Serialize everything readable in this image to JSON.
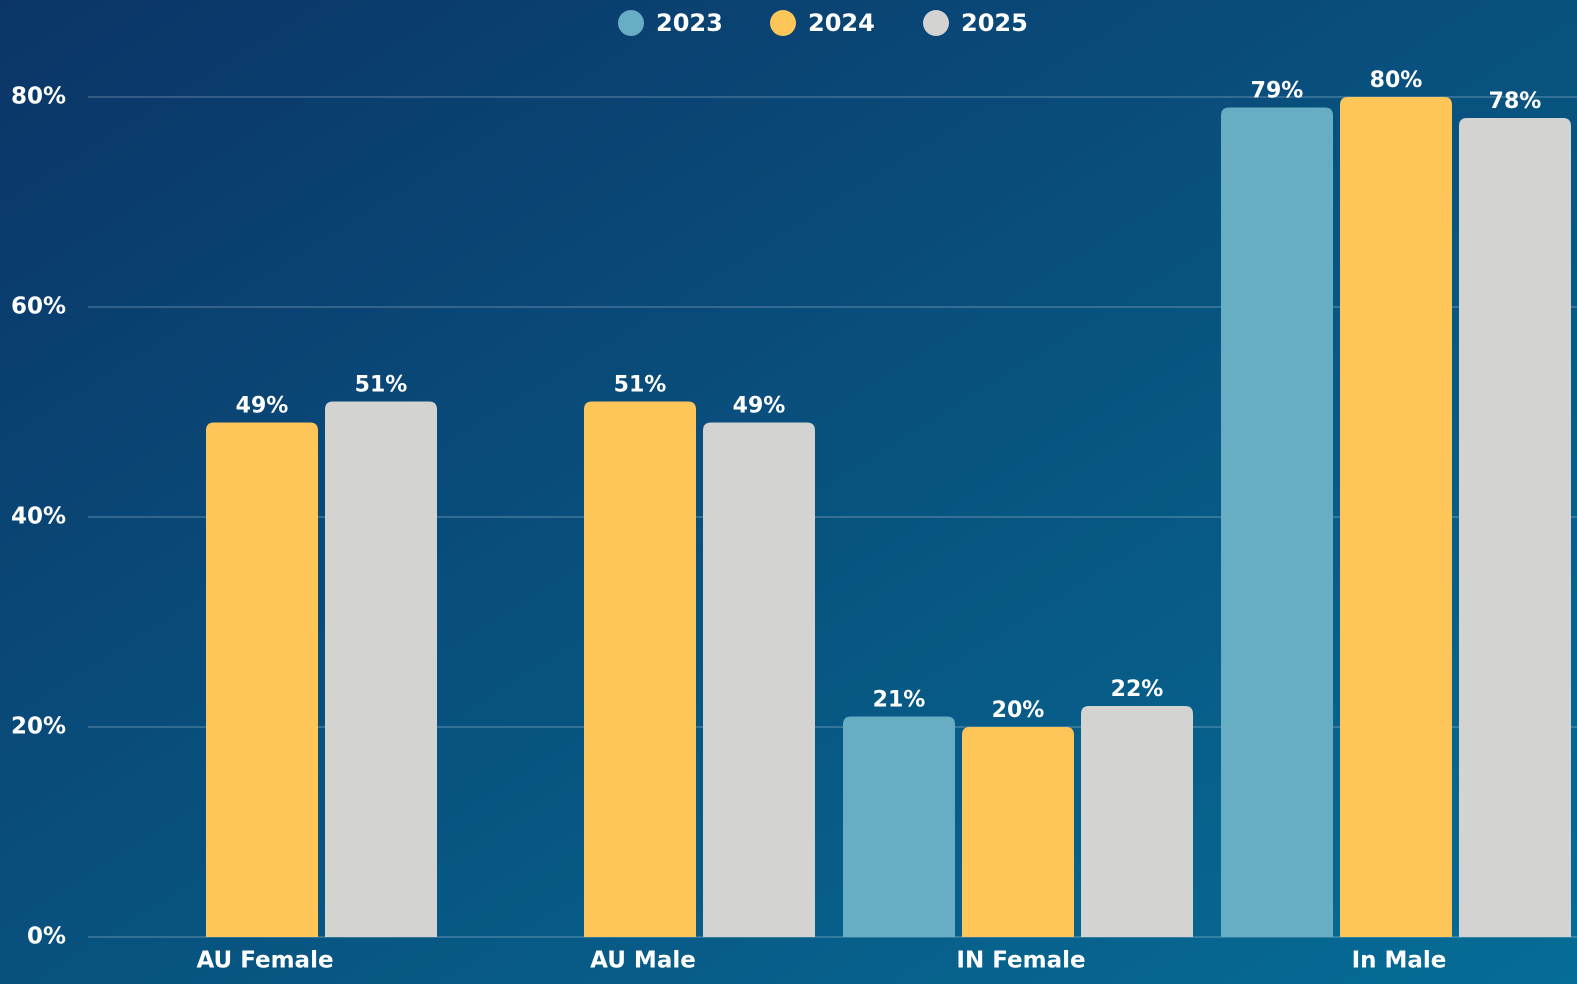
{
  "chart_data": {
    "type": "bar",
    "categories": [
      "AU Female",
      "AU Male",
      "IN Female",
      "In Male"
    ],
    "series": [
      {
        "name": "2023",
        "color": "#67adc4",
        "values": [
          null,
          null,
          21,
          79
        ],
        "value_labels": [
          null,
          null,
          "21%",
          "79%"
        ]
      },
      {
        "name": "2024",
        "color": "#fec658",
        "values": [
          49,
          51,
          20,
          80
        ],
        "value_labels": [
          "49%",
          "51%",
          "20%",
          "80%"
        ]
      },
      {
        "name": "2025",
        "color": "#d3d3d1",
        "values": [
          51,
          49,
          22,
          78
        ],
        "value_labels": [
          "51%",
          "49%",
          "22%",
          "78%"
        ]
      }
    ],
    "ylim": [
      0,
      80
    ],
    "yticks": [
      {
        "value": 0,
        "label": "0%"
      },
      {
        "value": 20,
        "label": "20%"
      },
      {
        "value": 40,
        "label": "40%"
      },
      {
        "value": 60,
        "label": "60%"
      },
      {
        "value": 80,
        "label": "80%"
      }
    ],
    "grid": true,
    "legend": "top"
  }
}
